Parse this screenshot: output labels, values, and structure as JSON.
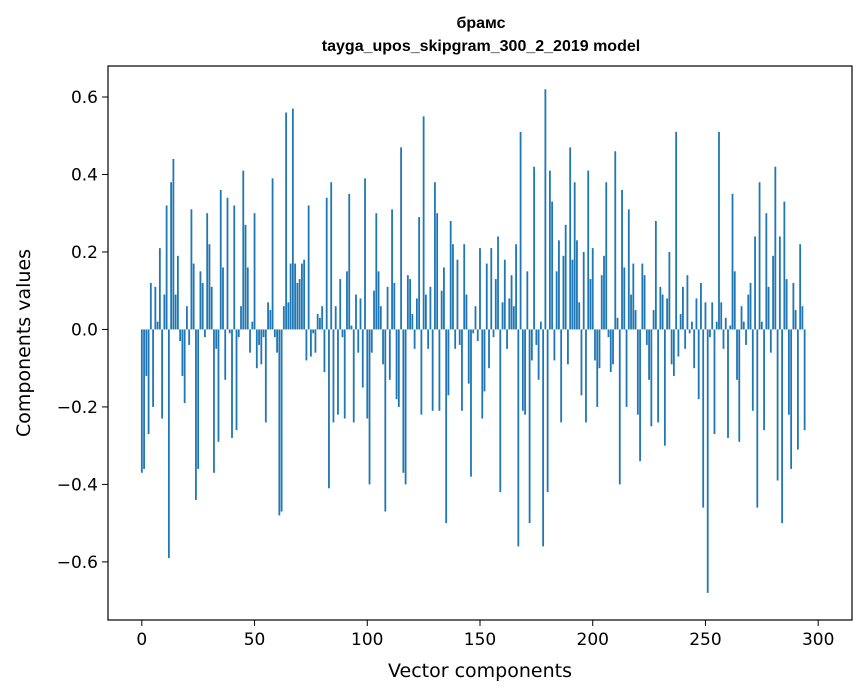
{
  "chart_data": {
    "type": "bar",
    "title": "брамс",
    "subtitle": "tayga_upos_skipgram_300_2_2019 model",
    "xlabel": "Vector components",
    "ylabel": "Components values",
    "xlim": [
      -15,
      315
    ],
    "ylim": [
      -0.75,
      0.68
    ],
    "xticks": [
      0,
      50,
      100,
      150,
      200,
      250,
      300
    ],
    "yticks": [
      -0.6,
      -0.4,
      -0.2,
      0.0,
      0.2,
      0.4,
      0.6
    ],
    "xtick_labels": [
      "0",
      "50",
      "100",
      "150",
      "200",
      "250",
      "300"
    ],
    "ytick_labels": [
      "−0.6",
      "−0.4",
      "−0.2",
      "0.0",
      "0.2",
      "0.4",
      "0.6"
    ],
    "grid": false,
    "bar_color": "#1f77b4",
    "values": [
      -0.37,
      -0.36,
      -0.12,
      -0.27,
      0.12,
      -0.2,
      0.11,
      0.02,
      0.21,
      -0.23,
      0.09,
      0.32,
      -0.59,
      0.38,
      0.44,
      0.09,
      0.19,
      -0.03,
      -0.12,
      -0.19,
      0.06,
      -0.04,
      0.31,
      0.17,
      -0.44,
      -0.36,
      0.15,
      0.12,
      -0.02,
      0.3,
      0.22,
      0.11,
      -0.37,
      -0.05,
      -0.29,
      0.36,
      0.16,
      -0.13,
      0.34,
      -0.01,
      -0.28,
      0.32,
      -0.26,
      -0.02,
      0.06,
      0.41,
      0.27,
      0.16,
      -0.06,
      0.02,
      0.3,
      -0.1,
      -0.04,
      -0.09,
      -0.02,
      -0.24,
      0.07,
      0.05,
      0.39,
      -0.02,
      -0.06,
      -0.48,
      -0.47,
      0.06,
      0.56,
      0.07,
      0.17,
      0.57,
      0.17,
      0.12,
      0.13,
      0.17,
      0.18,
      -0.08,
      0.32,
      -0.07,
      -0.01,
      -0.06,
      0.04,
      0.03,
      0.06,
      -0.11,
      0.34,
      -0.41,
      0.38,
      -0.24,
      0.06,
      -0.22,
      0.13,
      -0.02,
      -0.23,
      0.15,
      0.35,
      0.01,
      -0.24,
      0.09,
      -0.06,
      0.08,
      -0.15,
      0.39,
      -0.23,
      -0.4,
      -0.06,
      0.1,
      0.3,
      0.15,
      0.06,
      -0.09,
      -0.47,
      0.11,
      -0.13,
      0.31,
      0.12,
      -0.18,
      -0.2,
      0.47,
      -0.37,
      -0.4,
      0.14,
      0.13,
      0.04,
      -0.05,
      0.08,
      0.29,
      -0.22,
      0.55,
      0.09,
      -0.05,
      0.11,
      -0.21,
      0.38,
      0.3,
      -0.21,
      0.1,
      0.16,
      -0.5,
      -0.17,
      0.28,
      0.22,
      -0.05,
      0.18,
      -0.04,
      -0.21,
      0.22,
      0.09,
      -0.14,
      -0.38,
      -0.01,
      0.06,
      -0.03,
      0.21,
      -0.23,
      -0.16,
      0.17,
      -0.1,
      0.21,
      -0.02,
      0.13,
      0.24,
      -0.42,
      0.07,
      0.18,
      -0.05,
      0.08,
      0.14,
      0.06,
      0.22,
      -0.56,
      0.51,
      -0.21,
      -0.22,
      0.15,
      -0.5,
      -0.08,
      0.42,
      -0.04,
      -0.13,
      0.02,
      -0.56,
      0.62,
      -0.42,
      0.41,
      0.33,
      -0.08,
      0.15,
      0.23,
      -0.24,
      0.19,
      0.27,
      -0.09,
      0.47,
      0.18,
      0.38,
      0.23,
      0.07,
      -0.17,
      0.2,
      -0.24,
      0.41,
      0.13,
      0.21,
      -0.08,
      -0.2,
      -0.1,
      0.14,
      0.19,
      0.38,
      -0.02,
      -0.11,
      -0.09,
      0.46,
      0.03,
      -0.4,
      0.36,
      0.16,
      -0.2,
      0.31,
      0.09,
      0.17,
      0.05,
      -0.22,
      -0.34,
      0.17,
      0.14,
      -0.04,
      -0.13,
      -0.25,
      0.05,
      0.28,
      -0.24,
      0.11,
      0.09,
      -0.3,
      0.08,
      0.2,
      -0.09,
      -0.12,
      0.51,
      -0.07,
      0.04,
      0.11,
      -0.05,
      0.14,
      -0.01,
      0.02,
      -0.1,
      0.08,
      -0.18,
      0.12,
      -0.46,
      0.07,
      -0.68,
      -0.02,
      0.07,
      -0.27,
      0.02,
      0.51,
      0.07,
      -0.05,
      0.03,
      -0.28,
      0.01,
      0.35,
      0.15,
      -0.13,
      -0.29,
      0.06,
      0.02,
      -0.04,
      0.09,
      0.12,
      -0.21,
      0.24,
      -0.46,
      0.38,
      0.02,
      -0.26,
      0.3,
      0.11,
      -0.06,
      0.19,
      0.42,
      -0.39,
      0.24,
      -0.5,
      0.33,
      0.13,
      -0.22,
      -0.36,
      0.12,
      0.05,
      -0.31,
      0.22,
      0.06,
      -0.26
    ]
  }
}
